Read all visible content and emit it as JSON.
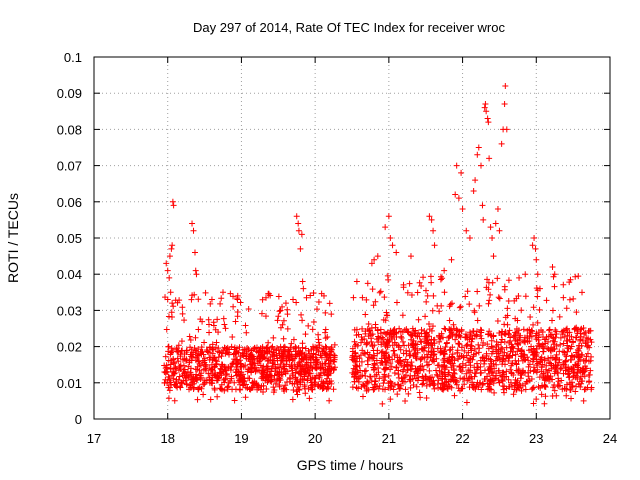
{
  "chart_data": {
    "type": "scatter",
    "title": "Day 297 of 2014, Rate Of TEC Index for receiver wroc",
    "xlabel": "GPS time / hours",
    "ylabel": "ROTI / TECUs",
    "xlim": [
      17,
      24
    ],
    "ylim": [
      0,
      0.1
    ],
    "xticks": [
      "17",
      "18",
      "19",
      "20",
      "21",
      "22",
      "23",
      "24"
    ],
    "yticks": [
      "0",
      "0.01",
      "0.02",
      "0.03",
      "0.04",
      "0.05",
      "0.06",
      "0.07",
      "0.08",
      "0.09",
      "0.1"
    ],
    "grid": true,
    "marker": "+",
    "color": "#ff0000",
    "series": [
      {
        "name": "ROTI",
        "segments": [
          {
            "x_start": 17.95,
            "x_end": 20.27,
            "typical": [
              0.008,
              0.02
            ],
            "spread": [
              0.005,
              0.035
            ]
          },
          {
            "x_start": 20.5,
            "x_end": 23.75,
            "typical": [
              0.008,
              0.025
            ],
            "spread": [
              0.004,
              0.04
            ]
          }
        ],
        "points": [
          {
            "x": 17.98,
            "y": 0.043
          },
          {
            "x": 18.0,
            "y": 0.041
          },
          {
            "x": 18.02,
            "y": 0.039
          },
          {
            "x": 18.04,
            "y": 0.035
          },
          {
            "x": 18.06,
            "y": 0.032
          },
          {
            "x": 18.0,
            "y": 0.033
          },
          {
            "x": 18.03,
            "y": 0.045
          },
          {
            "x": 18.05,
            "y": 0.047
          },
          {
            "x": 18.06,
            "y": 0.048
          },
          {
            "x": 18.07,
            "y": 0.06
          },
          {
            "x": 18.08,
            "y": 0.059
          },
          {
            "x": 18.33,
            "y": 0.054
          },
          {
            "x": 18.35,
            "y": 0.052
          },
          {
            "x": 18.37,
            "y": 0.046
          },
          {
            "x": 18.38,
            "y": 0.041
          },
          {
            "x": 18.39,
            "y": 0.04
          },
          {
            "x": 18.6,
            "y": 0.033
          },
          {
            "x": 18.75,
            "y": 0.035
          },
          {
            "x": 18.95,
            "y": 0.034
          },
          {
            "x": 19.7,
            "y": 0.033
          },
          {
            "x": 19.75,
            "y": 0.056
          },
          {
            "x": 19.77,
            "y": 0.054
          },
          {
            "x": 19.78,
            "y": 0.052
          },
          {
            "x": 19.8,
            "y": 0.047
          },
          {
            "x": 19.82,
            "y": 0.051
          },
          {
            "x": 19.83,
            "y": 0.038
          },
          {
            "x": 19.84,
            "y": 0.036
          },
          {
            "x": 20.12,
            "y": 0.034
          },
          {
            "x": 20.77,
            "y": 0.043
          },
          {
            "x": 20.8,
            "y": 0.044
          },
          {
            "x": 20.85,
            "y": 0.045
          },
          {
            "x": 20.95,
            "y": 0.053
          },
          {
            "x": 21.0,
            "y": 0.056
          },
          {
            "x": 21.02,
            "y": 0.05
          },
          {
            "x": 21.05,
            "y": 0.048
          },
          {
            "x": 21.1,
            "y": 0.046
          },
          {
            "x": 21.3,
            "y": 0.045
          },
          {
            "x": 21.55,
            "y": 0.056
          },
          {
            "x": 21.58,
            "y": 0.055
          },
          {
            "x": 21.6,
            "y": 0.052
          },
          {
            "x": 21.62,
            "y": 0.048
          },
          {
            "x": 21.75,
            "y": 0.041
          },
          {
            "x": 21.85,
            "y": 0.044
          },
          {
            "x": 21.9,
            "y": 0.062
          },
          {
            "x": 21.92,
            "y": 0.07
          },
          {
            "x": 21.95,
            "y": 0.061
          },
          {
            "x": 21.98,
            "y": 0.068
          },
          {
            "x": 22.0,
            "y": 0.058
          },
          {
            "x": 22.05,
            "y": 0.052
          },
          {
            "x": 22.1,
            "y": 0.05
          },
          {
            "x": 22.15,
            "y": 0.063
          },
          {
            "x": 22.17,
            "y": 0.066
          },
          {
            "x": 22.2,
            "y": 0.073
          },
          {
            "x": 22.22,
            "y": 0.075
          },
          {
            "x": 22.25,
            "y": 0.07
          },
          {
            "x": 22.27,
            "y": 0.059
          },
          {
            "x": 22.28,
            "y": 0.055
          },
          {
            "x": 22.3,
            "y": 0.086
          },
          {
            "x": 22.31,
            "y": 0.087
          },
          {
            "x": 22.32,
            "y": 0.085
          },
          {
            "x": 22.34,
            "y": 0.083
          },
          {
            "x": 22.35,
            "y": 0.082
          },
          {
            "x": 22.36,
            "y": 0.072
          },
          {
            "x": 22.38,
            "y": 0.053
          },
          {
            "x": 22.4,
            "y": 0.05
          },
          {
            "x": 22.42,
            "y": 0.045
          },
          {
            "x": 22.45,
            "y": 0.054
          },
          {
            "x": 22.48,
            "y": 0.058
          },
          {
            "x": 22.5,
            "y": 0.052
          },
          {
            "x": 22.53,
            "y": 0.076
          },
          {
            "x": 22.55,
            "y": 0.08
          },
          {
            "x": 22.57,
            "y": 0.087
          },
          {
            "x": 22.58,
            "y": 0.092
          },
          {
            "x": 22.6,
            "y": 0.08
          },
          {
            "x": 22.85,
            "y": 0.04
          },
          {
            "x": 22.95,
            "y": 0.048
          },
          {
            "x": 22.97,
            "y": 0.05
          },
          {
            "x": 22.99,
            "y": 0.047
          },
          {
            "x": 23.0,
            "y": 0.044
          },
          {
            "x": 23.02,
            "y": 0.04
          },
          {
            "x": 23.05,
            "y": 0.036
          },
          {
            "x": 23.22,
            "y": 0.042
          },
          {
            "x": 23.25,
            "y": 0.04
          }
        ]
      }
    ]
  }
}
